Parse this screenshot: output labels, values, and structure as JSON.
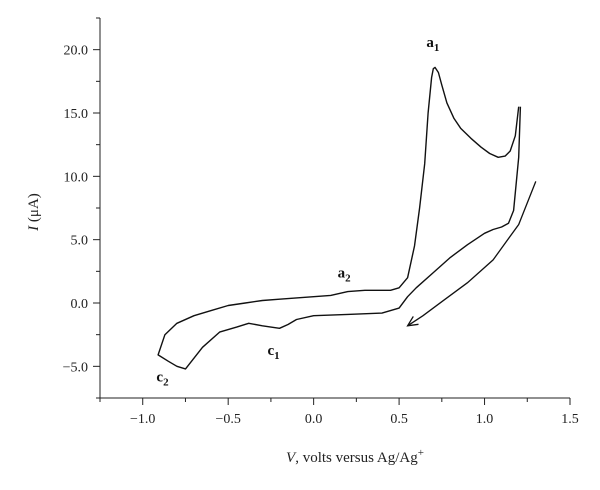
{
  "chart_data": {
    "type": "line",
    "title": "",
    "ylabel": {
      "italic": "I",
      "rest": " (μA)"
    },
    "xlabel": {
      "italic": "V",
      "rest": ", volts versus Ag/Ag",
      "sup": "+"
    },
    "xlim": [
      -1.25,
      1.5
    ],
    "ylim": [
      -7.5,
      22.5
    ],
    "xticks": [
      -1.0,
      -0.5,
      0.0,
      0.5,
      1.0,
      1.5
    ],
    "xtick_labels": [
      "−1.0",
      "−0.5",
      "0.0",
      "0.5",
      "1.0",
      "1.5"
    ],
    "yticks": [
      -5.0,
      0.0,
      5.0,
      10.0,
      15.0,
      20.0
    ],
    "ytick_labels": [
      "−5.0",
      "0.0",
      "5.0",
      "10.0",
      "15.0",
      "20.0"
    ],
    "grid": false,
    "series": [
      {
        "x": [
          1.2,
          1.18,
          1.15,
          1.12,
          1.08,
          1.03,
          0.98,
          0.92,
          0.86,
          0.82,
          0.78,
          0.75,
          0.73,
          0.71,
          0.7,
          0.69,
          0.67,
          0.65,
          0.62,
          0.59,
          0.55,
          0.5,
          0.45,
          0.4,
          0.3,
          0.2,
          0.1,
          0.0,
          -0.1,
          -0.2,
          -0.3,
          -0.4,
          -0.5,
          -0.6,
          -0.7,
          -0.8,
          -0.87,
          -0.91,
          -0.85,
          -0.8,
          -0.75,
          -0.65,
          -0.55,
          -0.45,
          -0.38,
          -0.3,
          -0.25,
          -0.2,
          -0.15,
          -0.1,
          0.0,
          0.2,
          0.4,
          0.5,
          0.55,
          0.6,
          0.7,
          0.8,
          0.9,
          1.0,
          1.05,
          1.1,
          1.14,
          1.17,
          1.2,
          1.21
        ],
        "y": [
          15.5,
          13.2,
          12.0,
          11.6,
          11.5,
          11.8,
          12.3,
          13.0,
          13.8,
          14.6,
          15.8,
          17.2,
          18.2,
          18.6,
          18.5,
          17.8,
          15.0,
          11.0,
          7.5,
          4.5,
          2.0,
          1.2,
          1.0,
          1.0,
          1.0,
          0.9,
          0.6,
          0.5,
          0.4,
          0.3,
          0.2,
          0.0,
          -0.2,
          -0.6,
          -1.0,
          -1.6,
          -2.5,
          -4.1,
          -4.6,
          -5.0,
          -5.2,
          -3.5,
          -2.3,
          -1.9,
          -1.6,
          -1.8,
          -1.9,
          -2.0,
          -1.7,
          -1.3,
          -1.0,
          -0.9,
          -0.8,
          -0.4,
          0.5,
          1.2,
          2.4,
          3.6,
          4.6,
          5.5,
          5.8,
          6.0,
          6.3,
          7.3,
          11.5,
          15.5
        ]
      }
    ],
    "arrow": {
      "x": [
        1.3,
        1.2,
        1.05,
        0.9,
        0.75,
        0.64,
        0.55
      ],
      "y": [
        9.6,
        6.2,
        3.4,
        1.6,
        0.1,
        -1.0,
        -1.8
      ]
    },
    "annotations": [
      {
        "id": "a1",
        "letter": "a",
        "sub": "1",
        "x": 0.66,
        "y": 20.2
      },
      {
        "id": "a2",
        "letter": "a",
        "sub": "2",
        "x": 0.14,
        "y": 2.0
      },
      {
        "id": "c1",
        "letter": "c",
        "sub": "1",
        "x": -0.27,
        "y": -4.1
      },
      {
        "id": "c2",
        "letter": "c",
        "sub": "2",
        "x": -0.92,
        "y": -6.2
      }
    ]
  }
}
